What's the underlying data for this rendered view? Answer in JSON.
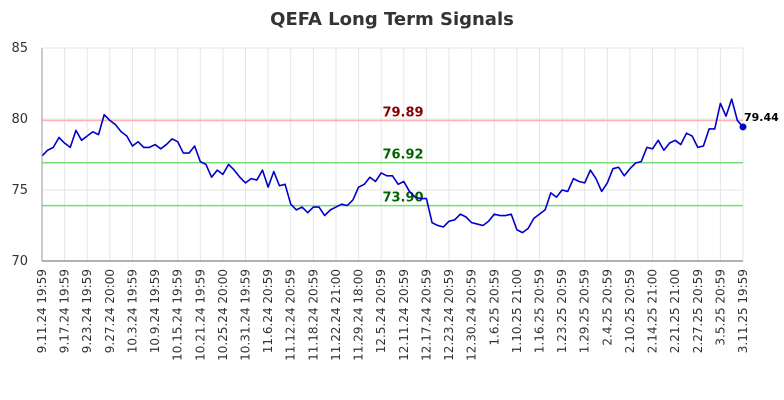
{
  "chart_data": {
    "type": "line",
    "title": "QEFA Long Term Signals",
    "xlabel": "",
    "ylabel": "",
    "ylim": [
      70,
      85
    ],
    "yticks": [
      70,
      75,
      80,
      85
    ],
    "grid": true,
    "x_tick_labels": [
      "9.11.24 19:59",
      "9.17.24 19:59",
      "9.23.24 19:59",
      "9.27.24 20:00",
      "10.3.24 19:59",
      "10.9.24 19:59",
      "10.15.24 19:59",
      "10.21.24 19:59",
      "10.25.24 20:00",
      "10.31.24 19:59",
      "11.6.24 20:59",
      "11.12.24 20:59",
      "11.18.24 20:59",
      "11.22.24 21:00",
      "11.29.24 18:00",
      "12.5.24 20:59",
      "12.11.24 20:59",
      "12.17.24 20:59",
      "12.23.24 20:59",
      "12.30.24 20:59",
      "1.6.25 20:59",
      "1.10.25 21:00",
      "1.16.25 20:59",
      "1.23.25 20:59",
      "1.29.25 20:59",
      "2.4.25 20:59",
      "2.10.25 20:59",
      "2.14.25 21:00",
      "2.21.25 21:00",
      "2.27.25 20:59",
      "3.5.25 20:59",
      "3.11.25 19:59"
    ],
    "series": [
      {
        "color": "#0000cc",
        "values": [
          77.4,
          77.8,
          78.0,
          78.7,
          78.3,
          78.0,
          79.2,
          78.5,
          78.8,
          79.1,
          78.9,
          80.3,
          79.9,
          79.6,
          79.1,
          78.8,
          78.1,
          78.4,
          78.0,
          78.0,
          78.2,
          77.9,
          78.2,
          78.6,
          78.4,
          77.6,
          77.6,
          78.1,
          77.0,
          76.8,
          75.9,
          76.4,
          76.1,
          76.8,
          76.4,
          75.9,
          75.5,
          75.8,
          75.7,
          76.4,
          75.2,
          76.3,
          75.3,
          75.4,
          74.0,
          73.6,
          73.8,
          73.4,
          73.8,
          73.8,
          73.2,
          73.6,
          73.8,
          74.0,
          73.9,
          74.3,
          75.2,
          75.4,
          75.9,
          75.6,
          76.2,
          76.0,
          76.0,
          75.4,
          75.6,
          74.9,
          74.5,
          74.4,
          74.4,
          72.7,
          72.5,
          72.4,
          72.8,
          72.9,
          73.3,
          73.1,
          72.7,
          72.6,
          72.5,
          72.8,
          73.3,
          73.2,
          73.2,
          73.3,
          72.2,
          72.0,
          72.3,
          73.0,
          73.3,
          73.6,
          74.8,
          74.5,
          75.0,
          74.9,
          75.8,
          75.6,
          75.5,
          76.4,
          75.8,
          74.9,
          75.5,
          76.5,
          76.6,
          76.0,
          76.5,
          76.9,
          77.0,
          78.0,
          77.9,
          78.5,
          77.8,
          78.3,
          78.5,
          78.2,
          79.0,
          78.8,
          78.0,
          78.1,
          79.3,
          79.3,
          81.1,
          80.2,
          81.4,
          79.9,
          79.44
        ]
      }
    ],
    "h_lines": [
      {
        "value": 79.89,
        "label": "79.89",
        "color": "#ffb3b3",
        "label_color": "#8b0000"
      },
      {
        "value": 76.92,
        "label": "76.92",
        "color": "#77dd77",
        "label_color": "#006400"
      },
      {
        "value": 73.9,
        "label": "73.90",
        "color": "#77dd77",
        "label_color": "#006400"
      }
    ],
    "last_value": 79.44,
    "last_label": "79.44"
  }
}
